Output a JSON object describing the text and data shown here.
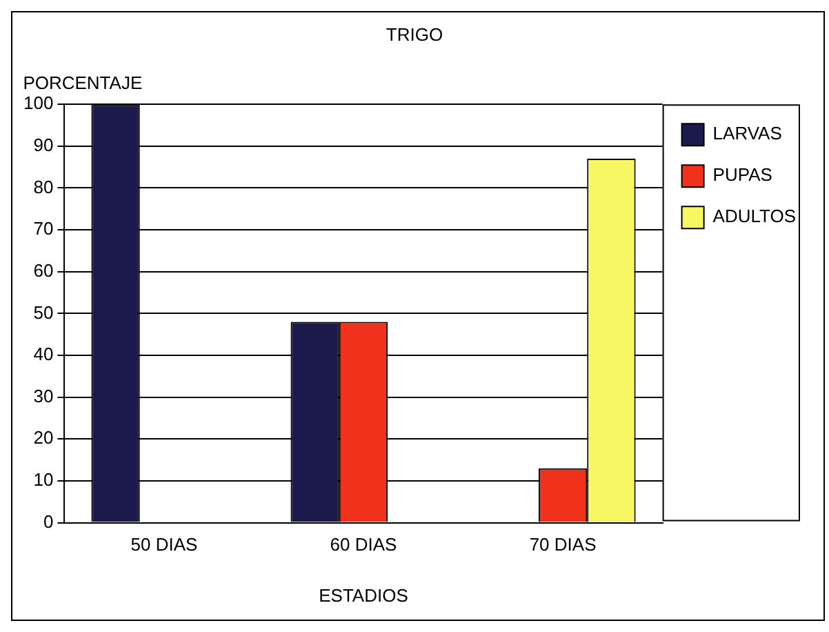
{
  "chart_data": {
    "type": "bar",
    "title": "TRIGO",
    "xlabel": "ESTADIOS",
    "ylabel": "PORCENTAJE",
    "categories": [
      "50 DIAS",
      "60 DIAS",
      "70 DIAS"
    ],
    "series": [
      {
        "name": "LARVAS",
        "color": "#1c1a4a",
        "values": [
          100,
          48,
          0
        ]
      },
      {
        "name": "PUPAS",
        "color": "#f0321c",
        "values": [
          0,
          48,
          13
        ]
      },
      {
        "name": "ADULTOS",
        "color": "#f7f763",
        "values": [
          0,
          0,
          87
        ]
      }
    ],
    "ylim": [
      0,
      100
    ],
    "yticks": [
      0,
      10,
      20,
      30,
      40,
      50,
      60,
      70,
      80,
      90,
      100
    ],
    "grid": "y",
    "legend": "top right"
  }
}
